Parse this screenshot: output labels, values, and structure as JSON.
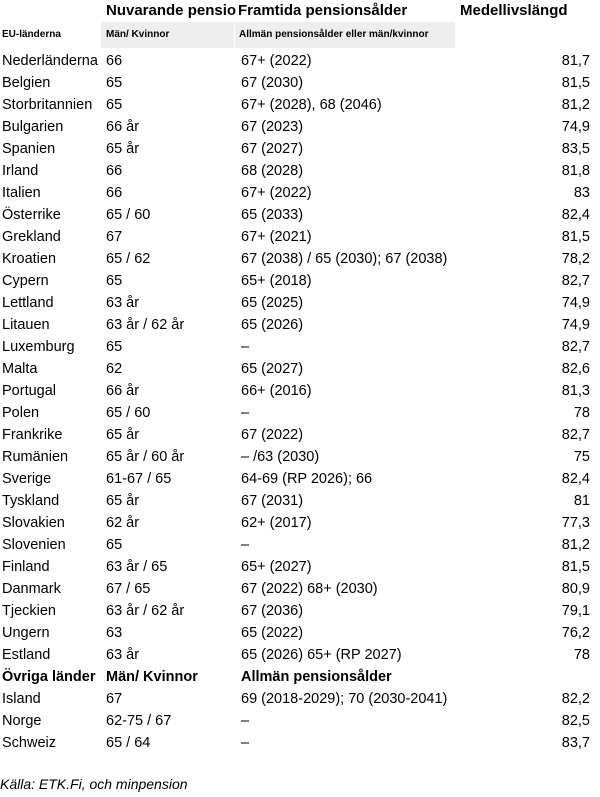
{
  "headers": {
    "col2_title": "Nuvarande pensionsålder",
    "col3_title": "Framtida pensionsålder",
    "col4_title": "Medellivslängd",
    "col1_sub": "EU-länderna",
    "col2_sub": "Män/ Kvinnor",
    "col3_sub": "Allmän pensionsålder eller män/kvinnor"
  },
  "eu_rows": [
    {
      "country": "Nederländerna",
      "current": "66",
      "future": "67+ (2022)",
      "life": "81,7"
    },
    {
      "country": "Belgien",
      "current": "65",
      "future": "67 (2030)",
      "life": "81,5"
    },
    {
      "country": "Storbritannien",
      "current": "65",
      "future": "67+ (2028), 68 (2046)",
      "life": "81,2"
    },
    {
      "country": "Bulgarien",
      "current": "66 år",
      "future": "67 (2023)",
      "life": "74,9"
    },
    {
      "country": "Spanien",
      "current": "65 år",
      "future": "67 (2027)",
      "life": "83,5"
    },
    {
      "country": "Irland",
      "current": "66",
      "future": "68 (2028)",
      "life": "81,8"
    },
    {
      "country": "Italien",
      "current": "66",
      "future": "67+ (2022)",
      "life": "83"
    },
    {
      "country": "Österrike",
      "current": "65 / 60",
      "future": "65 (2033)",
      "life": "82,4"
    },
    {
      "country": "Grekland",
      "current": "67",
      "future": "67+ (2021)",
      "life": "81,5"
    },
    {
      "country": "Kroatien",
      "current": "65 / 62",
      "future": "67 (2038) / 65 (2030); 67 (2038)",
      "life": "78,2"
    },
    {
      "country": "Cypern",
      "current": "65",
      "future": "65+ (2018)",
      "life": "82,7"
    },
    {
      "country": "Lettland",
      "current": "63 år",
      "future": "65 (2025)",
      "life": "74,9"
    },
    {
      "country": "Litauen",
      "current": "63 år / 62 år",
      "future": "65 (2026)",
      "life": "74,9"
    },
    {
      "country": "Luxemburg",
      "current": "65",
      "future": "–",
      "life": "82,7"
    },
    {
      "country": "Malta",
      "current": "62",
      "future": "65 (2027)",
      "life": "82,6"
    },
    {
      "country": "Portugal",
      "current": "66 år",
      "future": "66+ (2016)",
      "life": "81,3"
    },
    {
      "country": "Polen",
      "current": "65 / 60",
      "future": "–",
      "life": "78"
    },
    {
      "country": "Frankrike",
      "current": "65 år",
      "future": "67 (2022)",
      "life": "82,7"
    },
    {
      "country": "Rumänien",
      "current": "65 år / 60 år",
      "future": "– /63 (2030)",
      "life": "75"
    },
    {
      "country": "Sverige",
      "current": "61-67 / 65",
      "future": "64-69 (RP 2026); 66",
      "life": "82,4"
    },
    {
      "country": "Tyskland",
      "current": "65 år",
      "future": "67 (2031)",
      "life": "81"
    },
    {
      "country": "Slovakien",
      "current": "62 år",
      "future": "62+ (2017)",
      "life": "77,3"
    },
    {
      "country": "Slovenien",
      "current": "65",
      "future": "–",
      "life": "81,2"
    },
    {
      "country": "Finland",
      "current": "63 år / 65",
      "future": "65+ (2027)",
      "life": "81,5"
    },
    {
      "country": "Danmark",
      "current": "67 / 65",
      "future": "67 (2022) 68+ (2030)",
      "life": "80,9"
    },
    {
      "country": "Tjeckien",
      "current": "63 år / 62 år",
      "future": "67 (2036)",
      "life": "79,1"
    },
    {
      "country": "Ungern",
      "current": "63",
      "future": "65 (2022)",
      "life": "76,2"
    },
    {
      "country": "Estland",
      "current": "63 år",
      "future": "65 (2026) 65+ (RP 2027)",
      "life": "78"
    }
  ],
  "other_header": {
    "country": "Övriga länder",
    "current": "Män/ Kvinnor",
    "future": "Allmän pensionsålder"
  },
  "other_rows": [
    {
      "country": "Island",
      "current": "67",
      "future": "69 (2018-2029); 70 (2030-2041)",
      "life": "82,2"
    },
    {
      "country": "Norge",
      "current": "62-75 / 67",
      "future": "–",
      "life": "82,5"
    },
    {
      "country": "Schweiz",
      "current": "65 / 64",
      "future": "–",
      "life": "83,7"
    }
  ],
  "source": "Källa: ETK.Fi, och minpension"
}
